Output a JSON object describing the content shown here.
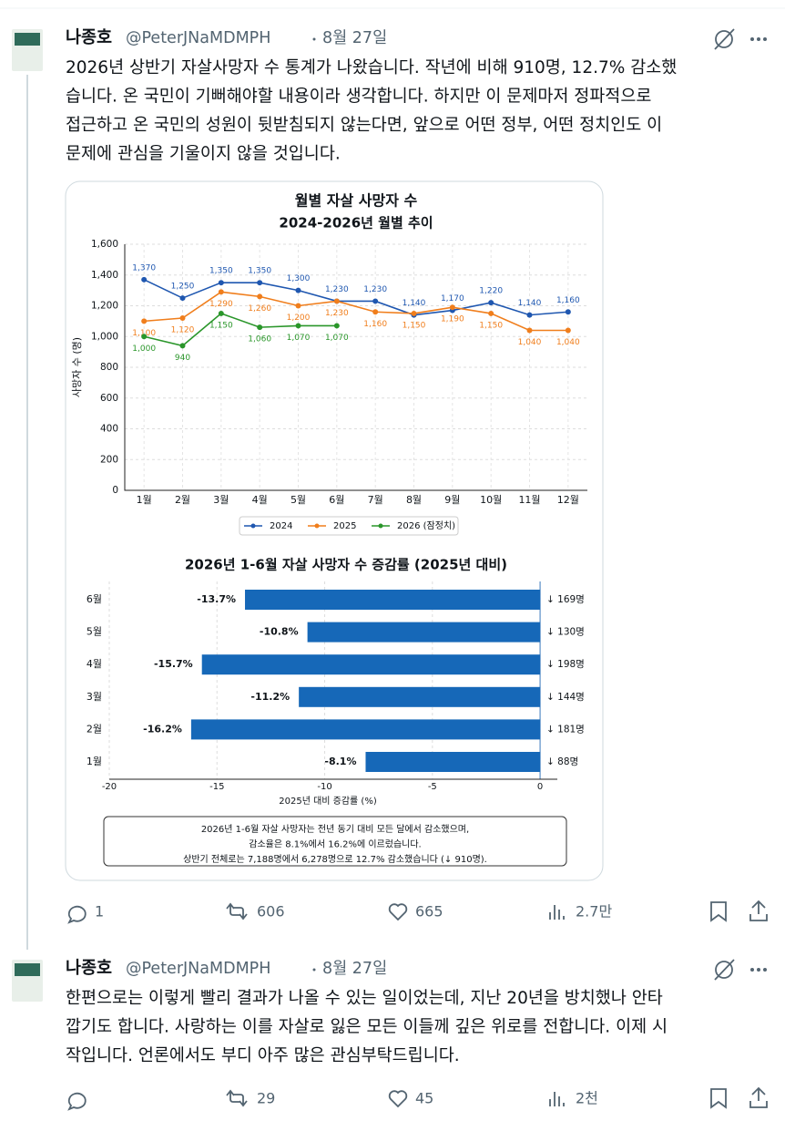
{
  "tweets": [
    {
      "name": "나종호",
      "handle": "@PeterJNaMDMPH",
      "date": "8월 27일",
      "text_lines": [
        "2026년 상반기 자살사망자 수 통계가 나왔습니다. 작년에 비해 910명, 12.7% 감소했",
        "습니다. 온 국민이 기뻐해야할 내용이라 생각합니다. 하지만 이 문제마저 정파적으로",
        "접근하고 온 국민의 성원이 뒷받침되지 않는다면, 앞으로 어떤 정부, 어떤 정치인도 이",
        "문제에 관심을 기울이지 않을 것입니다."
      ],
      "stats": {
        "replies": "1",
        "retweets": "606",
        "likes": "665",
        "views": "2.7만"
      },
      "image": {
        "charts": [
          {
            "type": "line",
            "title": "월별 자살 사망자 수",
            "subtitle": "2024-2026년 월별 추이",
            "ylabel": "사망자 수 (명)",
            "categories": [
              "1월",
              "2월",
              "3월",
              "4월",
              "5월",
              "6월",
              "7월",
              "8월",
              "9월",
              "10월",
              "11월",
              "12월"
            ],
            "ylim": [
              0,
              1600
            ],
            "yticks": [
              0,
              200,
              400,
              600,
              800,
              {
                "value": 1000,
                "label": "1,000"
              },
              {
                "value": 1200,
                "label": "1,200"
              },
              {
                "value": 1400,
                "label": "1,400"
              },
              {
                "value": 1600,
                "label": "1,600"
              }
            ],
            "grid": true,
            "series": [
              {
                "name": "2024",
                "color": "#1f57b0",
                "values": [
                  1370,
                  1250,
                  1350,
                  1350,
                  1300,
                  1230,
                  1230,
                  1140,
                  1170,
                  1220,
                  1140,
                  1160
                ],
                "value_labels": [
                  "1,370",
                  "1,250",
                  "1,350",
                  "1,350",
                  "1,300",
                  "1,230",
                  "1,230",
                  "1,140",
                  "1,170",
                  "1,220",
                  "1,140",
                  "1,160"
                ]
              },
              {
                "name": "2025",
                "color": "#f07e1c",
                "values": [
                  1100,
                  1120,
                  1290,
                  1260,
                  1200,
                  1230,
                  1160,
                  1150,
                  1190,
                  1150,
                  1040,
                  1040
                ],
                "value_labels": [
                  "1,100",
                  "1,120",
                  "1,290",
                  "1,260",
                  "1,200",
                  "1,230",
                  "1,160",
                  "1,150",
                  "1,190",
                  "1,150",
                  "1,040",
                  "1,040"
                ]
              },
              {
                "name": "2026 (잠정치)",
                "color": "#2a962a",
                "values": [
                  1000,
                  940,
                  1150,
                  1060,
                  1070,
                  1070,
                  null,
                  null,
                  null,
                  null,
                  null,
                  null
                ],
                "value_labels": [
                  "1,000",
                  "940",
                  "1,150",
                  "1,060",
                  "1,070",
                  "1,070",
                  null,
                  null,
                  null,
                  null,
                  null,
                  null
                ]
              }
            ]
          },
          {
            "type": "barh",
            "title": "2026년 1-6월 자살 사망자 수 증감률 (2025년 대비)",
            "xlabel": "2025년 대비 증감률 (%)",
            "categories": [
              "1월",
              "2월",
              "3월",
              "4월",
              "5월",
              "6월"
            ],
            "values": [
              -8.1,
              -16.2,
              -11.2,
              -15.7,
              -10.8,
              -13.7
            ],
            "value_labels": [
              "-8.1%",
              "-16.2%",
              "-11.2%",
              "-15.7%",
              "-10.8%",
              "-13.7%"
            ],
            "change_labels": [
              "↓ 88명",
              "↓ 181명",
              "↓ 144명",
              "↓ 198명",
              "↓ 130명",
              "↓ 169명"
            ],
            "color": "#1668b8",
            "xlim": [
              -20,
              0.8
            ],
            "xticks": [
              -20,
              -15,
              -10,
              -5,
              0
            ],
            "grid": true,
            "note_lines": [
              "2026년 1-6월 자살 사망자는 전년 동기 대비 모든 달에서 감소했으며,",
              "감소율은 8.1%에서 16.2%에 이르렀습니다.",
              "상반기 전체로는 7,188명에서 6,278명으로 12.7% 감소했습니다 (↓ 910명)."
            ]
          }
        ]
      }
    },
    {
      "name": "나종호",
      "handle": "@PeterJNaMDMPH",
      "date": "8월 27일",
      "text_lines": [
        "한편으로는 이렇게 빨리 결과가 나올 수 있는 일이었는데, 지난 20년을 방치했나 안타",
        "깝기도 합니다. 사랑하는 이를 자살로 잃은 모든 이들께 깊은 위로를 전합니다. 이제 시",
        "작입니다. 언론에서도 부디 아주 많은 관심부탁드립니다."
      ],
      "stats": {
        "retweets": "29",
        "likes": "45",
        "views": "2천"
      }
    }
  ]
}
